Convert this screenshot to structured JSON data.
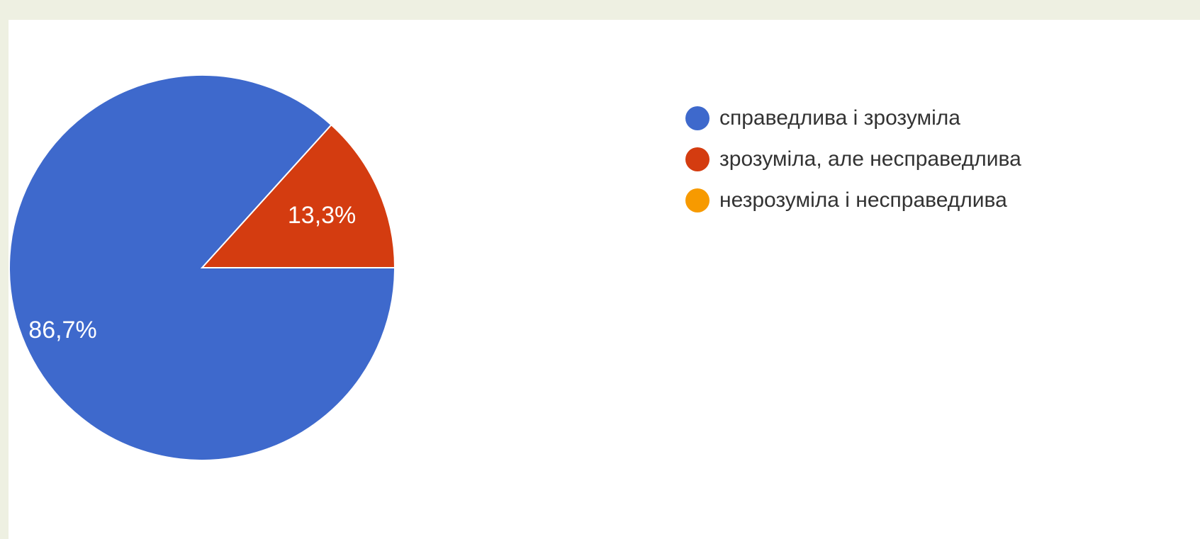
{
  "chart_data": {
    "type": "pie",
    "labels": [
      "справедлива і зрозуміла",
      "зрозуміла, але несправедлива",
      "незрозуміла і несправедлива"
    ],
    "values": [
      86.7,
      13.3,
      0
    ],
    "value_labels": [
      "86,7%",
      "13,3%",
      ""
    ],
    "colors": [
      "#3e69cc",
      "#d43c10",
      "#f79a00"
    ],
    "start": "3 o'clock, counter-clockwise",
    "legend_position": "right"
  }
}
